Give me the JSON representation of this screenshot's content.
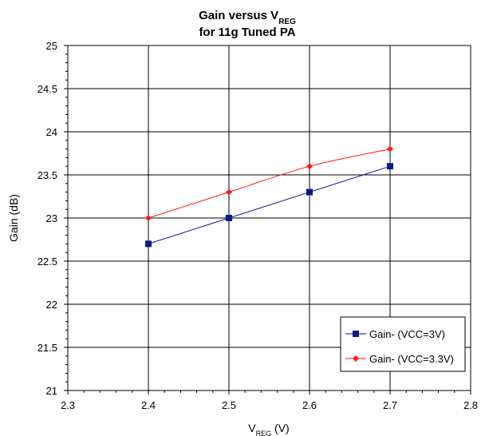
{
  "chart_data": {
    "type": "line",
    "title_line1_main": "Gain versus V",
    "title_line1_sub": "REG",
    "title_line2": "for 11g Tuned PA",
    "xlabel_main": "V",
    "xlabel_sub": "REG",
    "xlabel_unit": " (V)",
    "ylabel": "Gain (dB)",
    "xlim": [
      2.3,
      2.8
    ],
    "ylim": [
      21,
      25
    ],
    "xticks": [
      "2.3",
      "2.4",
      "2.5",
      "2.6",
      "2.7",
      "2.8"
    ],
    "yticks": [
      "21",
      "21.5",
      "22",
      "22.5",
      "23",
      "23.5",
      "24",
      "24.5",
      "25"
    ],
    "grid": true,
    "legend_position": "bottom-right",
    "series": [
      {
        "name": "Gain- (VCC=3V)",
        "color": "#0a1a8a",
        "marker": "square",
        "smooth": false,
        "x": [
          2.4,
          2.5,
          2.6,
          2.7
        ],
        "y": [
          22.7,
          23.0,
          23.3,
          23.6
        ]
      },
      {
        "name": "Gain- (VCC=3.3V)",
        "color": "#ff1a1a",
        "marker": "diamond",
        "smooth": true,
        "x": [
          2.4,
          2.5,
          2.6,
          2.7
        ],
        "y": [
          23.0,
          23.3,
          23.6,
          23.8
        ]
      }
    ]
  }
}
